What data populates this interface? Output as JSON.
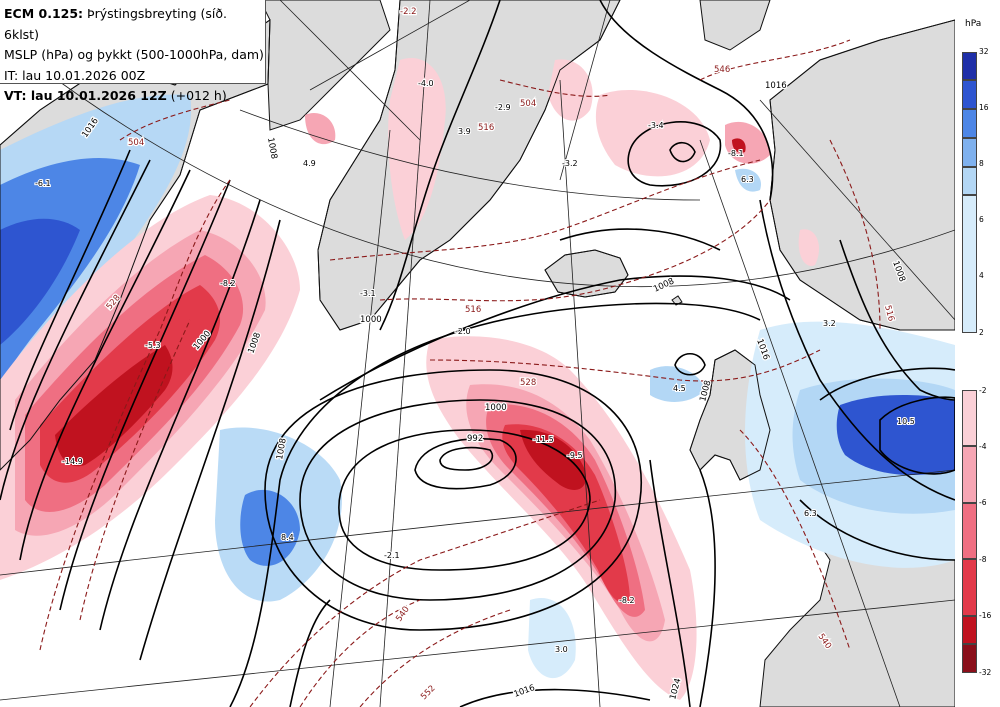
{
  "header": {
    "line1_bold": "ECM 0.125:",
    "line1_rest": "Þrýstingsbreyting (síð. 6klst)",
    "line2": "MSLP (hPa) og þykkt (500-1000hPa, dam)",
    "line3": "IT: lau 10.01.2026 00Z",
    "line4_bold": "VT: lau 10.01.2026 12Z",
    "line4_rest": "(+012 h)"
  },
  "legend": {
    "unit": "hPa",
    "rise": [
      {
        "value": "32",
        "color": "#1f2fa8"
      },
      {
        "value": "16",
        "color": "#2e55d0"
      },
      {
        "value": "8",
        "color": "#4d86e6"
      },
      {
        "value": "6",
        "color": "#7fb1ee"
      },
      {
        "value": "4",
        "color": "#b3d7f5"
      },
      {
        "value": "2",
        "color": "#d6ecfb"
      }
    ],
    "fall": [
      {
        "value": "-2",
        "color": "#fbd0d7"
      },
      {
        "value": "-4",
        "color": "#f6a6b4"
      },
      {
        "value": "-6",
        "color": "#ef6f82"
      },
      {
        "value": "-8",
        "color": "#e23a4a"
      },
      {
        "value": "-16",
        "color": "#c0121f"
      },
      {
        "value": "-32",
        "color": "#8a0f1a"
      }
    ]
  },
  "map_labels": {
    "isobar": [
      "1016",
      "1008",
      "1000",
      "1008",
      "1000",
      "1008",
      "992",
      "1000",
      "1008",
      "1008",
      "1016",
      "1024",
      "1016",
      "1008",
      "1016"
    ],
    "thickness": [
      "-2.2",
      "504",
      "516",
      "528",
      "546",
      "516",
      "528",
      "540",
      "552",
      "540",
      "516",
      "504"
    ],
    "change": [
      "-6.1",
      "4.9",
      "-4.0",
      "3.9",
      "-2.9",
      "-3.2",
      "-3.4",
      "-8.1",
      "6.3",
      "-3.1",
      "-2.0",
      "-8.2",
      "-5.3",
      "-14.9",
      "8.4",
      "-2.1",
      "-11.5",
      "-9.5",
      "-8.2",
      "3.0",
      "4.5",
      "3.2",
      "10.5",
      "6.3"
    ]
  },
  "colors": {
    "land": "#dcdcdc",
    "coast": "#111111",
    "isobar": "#000000",
    "thickness": "#8b1a1a",
    "graticule": "#222222"
  }
}
